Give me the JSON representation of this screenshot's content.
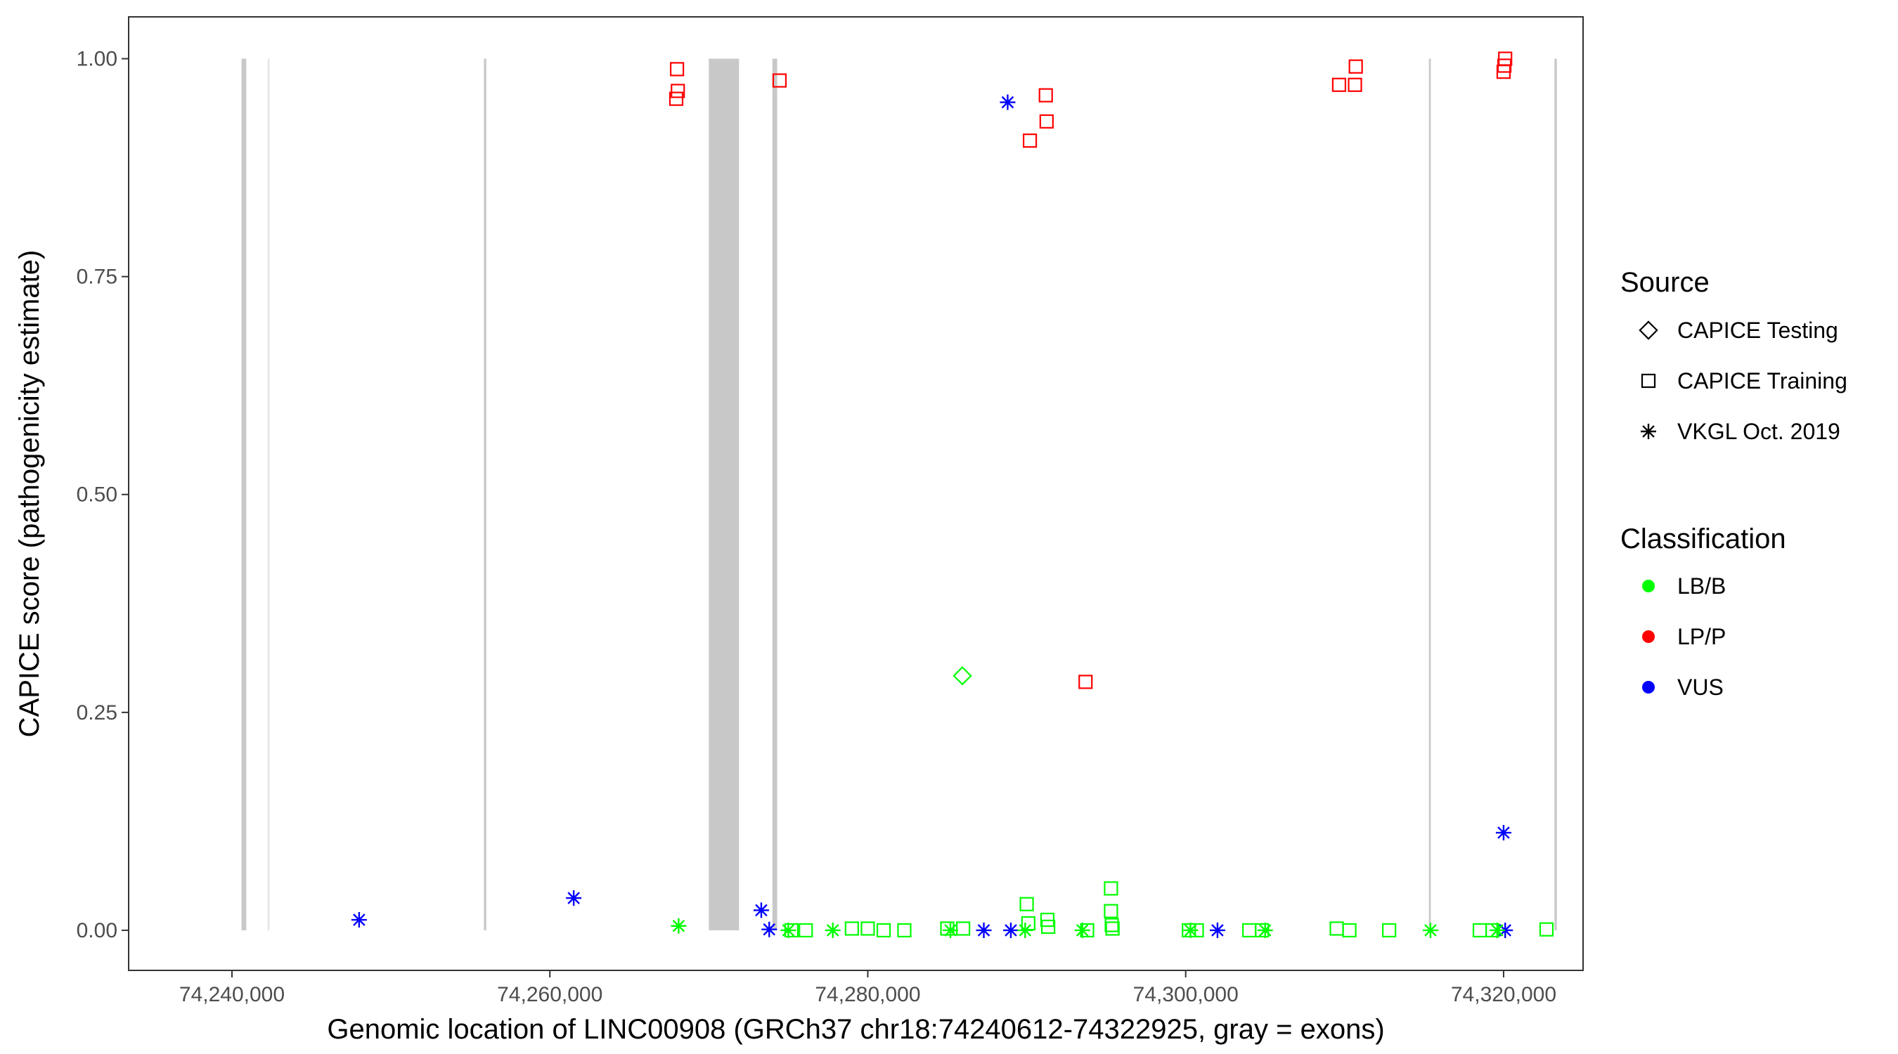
{
  "chart_data": {
    "type": "scatter",
    "xlabel": "Genomic location of LINC00908 (GRCh37 chr18:74240612-74322925, gray = exons)",
    "ylabel": "CAPICE score (pathogenicity estimate)",
    "xlim": [
      74233500,
      74325000
    ],
    "ylim": [
      -0.046,
      1.048
    ],
    "x_ticks": [
      74240000,
      74260000,
      74280000,
      74300000,
      74320000
    ],
    "x_tick_labels": [
      "74,240,000",
      "74,260,000",
      "74,280,000",
      "74,300,000",
      "74,320,000"
    ],
    "y_ticks": [
      0,
      0.25,
      0.5,
      0.75,
      1.0
    ],
    "y_tick_labels": [
      "0.00",
      "0.25",
      "0.50",
      "0.75",
      "1.00"
    ],
    "grid": false,
    "exons": [
      {
        "start": 74240600,
        "end": 74240900,
        "shade": "#c8c8c8"
      },
      {
        "start": 74242250,
        "end": 74242350,
        "shade": "#e4e4e4"
      },
      {
        "start": 74255850,
        "end": 74256000,
        "shade": "#c8c8c8"
      },
      {
        "start": 74270000,
        "end": 74271900,
        "shade": "#c8c8c8"
      },
      {
        "start": 74274000,
        "end": 74274300,
        "shade": "#c8c8c8"
      },
      {
        "start": 74315300,
        "end": 74315420,
        "shade": "#c8c8c8"
      },
      {
        "start": 74323200,
        "end": 74323350,
        "shade": "#c8c8c8"
      }
    ],
    "legend": {
      "position": "right",
      "source_title": "Source",
      "source_items": [
        {
          "shape": "diamond",
          "label": "CAPICE Testing"
        },
        {
          "shape": "square",
          "label": "CAPICE Training"
        },
        {
          "shape": "asterisk",
          "label": "VKGL Oct. 2019"
        }
      ],
      "class_title": "Classification",
      "class_items": [
        {
          "color": "#00ff00",
          "label": "LB/B"
        },
        {
          "color": "#ff0000",
          "label": "LP/P"
        },
        {
          "color": "#0000ff",
          "label": "VUS"
        }
      ]
    },
    "colors": {
      "LB/B": "#00ff00",
      "LP/P": "#ff0000",
      "VUS": "#0000ff"
    },
    "series": [
      {
        "source": "CAPICE Testing",
        "points": [
          {
            "x": 74285950,
            "y": 0.292,
            "class": "LB/B"
          }
        ]
      },
      {
        "source": "CAPICE Training",
        "points": [
          {
            "x": 74268000,
            "y": 0.988,
            "class": "LP/P"
          },
          {
            "x": 74268050,
            "y": 0.963,
            "class": "LP/P"
          },
          {
            "x": 74267950,
            "y": 0.954,
            "class": "LP/P"
          },
          {
            "x": 74274450,
            "y": 0.975,
            "class": "LP/P"
          },
          {
            "x": 74291200,
            "y": 0.958,
            "class": "LP/P"
          },
          {
            "x": 74291250,
            "y": 0.928,
            "class": "LP/P"
          },
          {
            "x": 74290200,
            "y": 0.906,
            "class": "LP/P"
          },
          {
            "x": 74293700,
            "y": 0.285,
            "class": "LP/P"
          },
          {
            "x": 74309650,
            "y": 0.97,
            "class": "LP/P"
          },
          {
            "x": 74310700,
            "y": 0.991,
            "class": "LP/P"
          },
          {
            "x": 74310650,
            "y": 0.97,
            "class": "LP/P"
          },
          {
            "x": 74320100,
            "y": 1.0,
            "class": "LP/P"
          },
          {
            "x": 74320050,
            "y": 0.992,
            "class": "LP/P"
          },
          {
            "x": 74320000,
            "y": 0.985,
            "class": "LP/P"
          },
          {
            "x": 74275200,
            "y": 0.0,
            "class": "LB/B"
          },
          {
            "x": 74276100,
            "y": 0.0,
            "class": "LB/B"
          },
          {
            "x": 74279000,
            "y": 0.002,
            "class": "LB/B"
          },
          {
            "x": 74280000,
            "y": 0.002,
            "class": "LB/B"
          },
          {
            "x": 74281000,
            "y": 0.0,
            "class": "LB/B"
          },
          {
            "x": 74282300,
            "y": 0.0,
            "class": "LB/B"
          },
          {
            "x": 74285000,
            "y": 0.002,
            "class": "LB/B"
          },
          {
            "x": 74286000,
            "y": 0.002,
            "class": "LB/B"
          },
          {
            "x": 74290000,
            "y": 0.03,
            "class": "LB/B"
          },
          {
            "x": 74290100,
            "y": 0.008,
            "class": "LB/B"
          },
          {
            "x": 74291300,
            "y": 0.012,
            "class": "LB/B"
          },
          {
            "x": 74291350,
            "y": 0.004,
            "class": "LB/B"
          },
          {
            "x": 74293800,
            "y": 0.0,
            "class": "LB/B"
          },
          {
            "x": 74295300,
            "y": 0.048,
            "class": "LB/B"
          },
          {
            "x": 74295300,
            "y": 0.022,
            "class": "LB/B"
          },
          {
            "x": 74295350,
            "y": 0.006,
            "class": "LB/B"
          },
          {
            "x": 74295400,
            "y": 0.002,
            "class": "LB/B"
          },
          {
            "x": 74300200,
            "y": 0.0,
            "class": "LB/B"
          },
          {
            "x": 74300700,
            "y": 0.0,
            "class": "LB/B"
          },
          {
            "x": 74304000,
            "y": 0.0,
            "class": "LB/B"
          },
          {
            "x": 74304800,
            "y": 0.0,
            "class": "LB/B"
          },
          {
            "x": 74309500,
            "y": 0.002,
            "class": "LB/B"
          },
          {
            "x": 74310300,
            "y": 0.0,
            "class": "LB/B"
          },
          {
            "x": 74312800,
            "y": 0.0,
            "class": "LB/B"
          },
          {
            "x": 74318500,
            "y": 0.0,
            "class": "LB/B"
          },
          {
            "x": 74319300,
            "y": 0.0,
            "class": "LB/B"
          },
          {
            "x": 74322700,
            "y": 0.001,
            "class": "LB/B"
          }
        ]
      },
      {
        "source": "VKGL Oct. 2019",
        "points": [
          {
            "x": 74248000,
            "y": 0.012,
            "class": "VUS"
          },
          {
            "x": 74261500,
            "y": 0.037,
            "class": "VUS"
          },
          {
            "x": 74273300,
            "y": 0.023,
            "class": "VUS"
          },
          {
            "x": 74273800,
            "y": 0.001,
            "class": "VUS"
          },
          {
            "x": 74287300,
            "y": 0.0,
            "class": "VUS"
          },
          {
            "x": 74288800,
            "y": 0.95,
            "class": "VUS"
          },
          {
            "x": 74289000,
            "y": 0.0,
            "class": "VUS"
          },
          {
            "x": 74302000,
            "y": 0.0,
            "class": "VUS"
          },
          {
            "x": 74320000,
            "y": 0.112,
            "class": "VUS"
          },
          {
            "x": 74320100,
            "y": 0.0,
            "class": "VUS"
          },
          {
            "x": 74268100,
            "y": 0.005,
            "class": "LB/B"
          },
          {
            "x": 74275000,
            "y": 0.0,
            "class": "LB/B"
          },
          {
            "x": 74277800,
            "y": 0.0,
            "class": "LB/B"
          },
          {
            "x": 74285200,
            "y": 0.0,
            "class": "LB/B"
          },
          {
            "x": 74289900,
            "y": 0.0,
            "class": "LB/B"
          },
          {
            "x": 74293500,
            "y": 0.0,
            "class": "LB/B"
          },
          {
            "x": 74300300,
            "y": 0.0,
            "class": "LB/B"
          },
          {
            "x": 74305000,
            "y": 0.0,
            "class": "LB/B"
          },
          {
            "x": 74315400,
            "y": 0.0,
            "class": "LB/B"
          },
          {
            "x": 74319600,
            "y": 0.0,
            "class": "LB/B"
          }
        ]
      }
    ]
  }
}
